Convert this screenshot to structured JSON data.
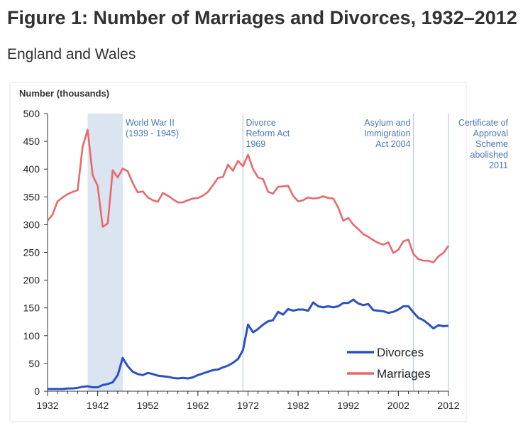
{
  "page": {
    "title": "Figure 1: Number of Marriages and Divorces, 1932–2012",
    "subtitle": "England and Wales"
  },
  "colors": {
    "divorces": "#2b50c4",
    "marriages": "#e8696c",
    "axis": "#333333",
    "annotation": "#4a76b5",
    "shade": "#dbe4f1",
    "marker_line": "#b8cbe3"
  },
  "chart_data": {
    "type": "line",
    "title": "Figure 1: Number of Marriages and Divorces, 1932–2012",
    "subtitle": "England and Wales",
    "ylabel": "Number (thousands)",
    "xlabel": "",
    "xlim": [
      1932,
      2012
    ],
    "ylim": [
      0,
      500
    ],
    "x_ticks": [
      "1932",
      "1942",
      "1952",
      "1962",
      "1972",
      "1982",
      "1992",
      "2002",
      "2012"
    ],
    "y_ticks": [
      "0",
      "50",
      "100",
      "150",
      "200",
      "250",
      "300",
      "350",
      "400",
      "450",
      "500"
    ],
    "grid": false,
    "legend_position": "bottom-right",
    "series": [
      {
        "name": "Divorces",
        "x": [
          1932,
          1933,
          1934,
          1935,
          1936,
          1937,
          1938,
          1939,
          1940,
          1941,
          1942,
          1943,
          1944,
          1945,
          1946,
          1947,
          1948,
          1949,
          1950,
          1951,
          1952,
          1953,
          1954,
          1955,
          1956,
          1957,
          1958,
          1959,
          1960,
          1961,
          1962,
          1963,
          1964,
          1965,
          1966,
          1967,
          1968,
          1969,
          1970,
          1971,
          1972,
          1973,
          1974,
          1975,
          1976,
          1977,
          1978,
          1979,
          1980,
          1981,
          1982,
          1983,
          1984,
          1985,
          1986,
          1987,
          1988,
          1989,
          1990,
          1991,
          1992,
          1993,
          1994,
          1995,
          1996,
          1997,
          1998,
          1999,
          2000,
          2001,
          2002,
          2003,
          2004,
          2005,
          2006,
          2007,
          2008,
          2009,
          2010,
          2011,
          2012
        ],
        "values": [
          4,
          4,
          4,
          4,
          5,
          5,
          6,
          8,
          9,
          7,
          7,
          11,
          13,
          16,
          29,
          60,
          45,
          35,
          31,
          29,
          33,
          31,
          28,
          27,
          26,
          24,
          23,
          24,
          23,
          25,
          29,
          32,
          35,
          38,
          39,
          43,
          46,
          51,
          58,
          74,
          120,
          106,
          112,
          120,
          126,
          128,
          143,
          138,
          148,
          145,
          147,
          147,
          145,
          160,
          153,
          151,
          153,
          151,
          153,
          159,
          159,
          165,
          158,
          155,
          157,
          146,
          145,
          144,
          141,
          143,
          147,
          153,
          153,
          142,
          132,
          128,
          121,
          113,
          119,
          117,
          118
        ]
      },
      {
        "name": "Marriages",
        "x": [
          1932,
          1933,
          1934,
          1935,
          1936,
          1937,
          1938,
          1939,
          1940,
          1941,
          1942,
          1943,
          1944,
          1945,
          1946,
          1947,
          1948,
          1949,
          1950,
          1951,
          1952,
          1953,
          1954,
          1955,
          1956,
          1957,
          1958,
          1959,
          1960,
          1961,
          1962,
          1963,
          1964,
          1965,
          1966,
          1967,
          1968,
          1969,
          1970,
          1971,
          1972,
          1973,
          1974,
          1975,
          1976,
          1977,
          1978,
          1979,
          1980,
          1981,
          1982,
          1983,
          1984,
          1985,
          1986,
          1987,
          1988,
          1989,
          1990,
          1991,
          1992,
          1993,
          1994,
          1995,
          1996,
          1997,
          1998,
          1999,
          2000,
          2001,
          2002,
          2003,
          2004,
          2005,
          2006,
          2007,
          2008,
          2009,
          2010,
          2011,
          2012
        ],
        "values": [
          307,
          318,
          342,
          349,
          355,
          359,
          362,
          440,
          471,
          389,
          370,
          296,
          302,
          398,
          385,
          401,
          396,
          375,
          358,
          360,
          349,
          344,
          341,
          357,
          352,
          346,
          340,
          340,
          344,
          347,
          348,
          352,
          359,
          371,
          384,
          386,
          408,
          397,
          415,
          405,
          426,
          400,
          385,
          382,
          359,
          356,
          368,
          369,
          370,
          352,
          342,
          344,
          349,
          347,
          348,
          351,
          348,
          347,
          331,
          307,
          312,
          300,
          292,
          283,
          278,
          272,
          267,
          264,
          268,
          249,
          255,
          270,
          273,
          247,
          238,
          235,
          235,
          232,
          243,
          249,
          262
        ]
      }
    ],
    "annotations": [
      {
        "id": "ww2",
        "lines": [
          "World War II",
          "(1939 - 1945)"
        ],
        "range": [
          1940,
          1947
        ],
        "anchor": "start"
      },
      {
        "id": "divorce-reform",
        "lines": [
          "Divorce",
          "Reform Act",
          "1969"
        ],
        "x": 1971,
        "anchor": "start"
      },
      {
        "id": "asylum",
        "lines": [
          "Asylum and",
          "Immigration",
          "Act 2004"
        ],
        "x": 2005,
        "anchor": "end"
      },
      {
        "id": "coa",
        "lines": [
          "Certificate of",
          "Approval",
          "Scheme",
          "abolished",
          "2011"
        ],
        "x": 2012,
        "anchor": "end"
      }
    ]
  }
}
